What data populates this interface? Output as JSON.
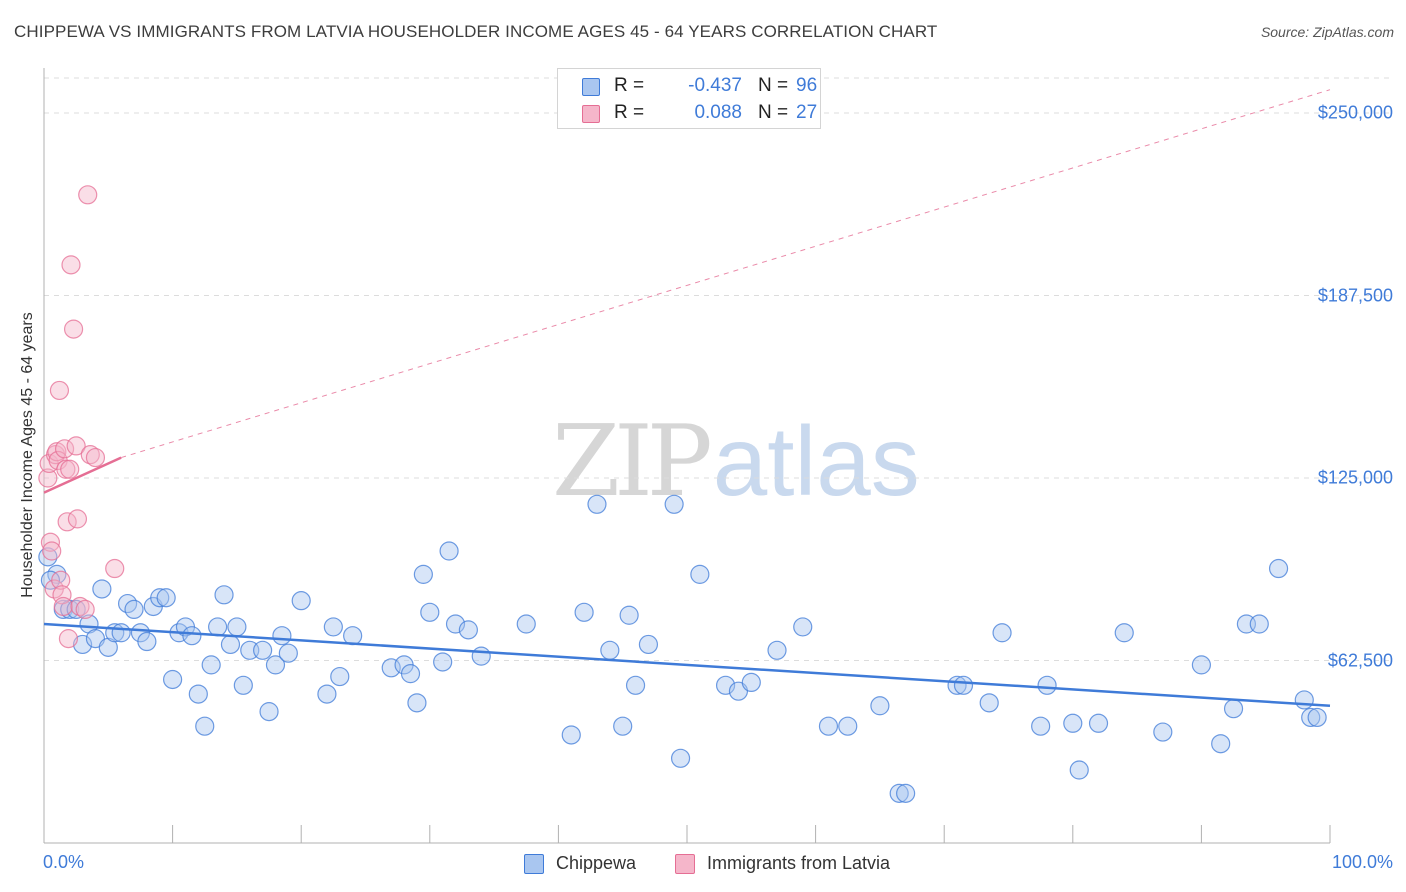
{
  "title": "CHIPPEWA VS IMMIGRANTS FROM LATVIA HOUSEHOLDER INCOME AGES 45 - 64 YEARS CORRELATION CHART",
  "source": "Source: ZipAtlas.com",
  "watermark": {
    "zip": "ZIP",
    "atlas": "atlas"
  },
  "colors": {
    "chippewa": "#3f7bd8",
    "chippewa_fill": "#a9c6f0",
    "latvia": "#e56e94",
    "latvia_fill": "#f5b6ca",
    "grid": "#dcdcdc",
    "axis": "#b0b0b0"
  },
  "legend_top": {
    "rows": [
      {
        "series": "chippewa",
        "r_label": "R =",
        "r_value": "-0.437",
        "n_label": "N =",
        "n_value": "96"
      },
      {
        "series": "latvia",
        "r_label": "R =",
        "r_value": "0.088",
        "n_label": "N =",
        "n_value": "27"
      }
    ]
  },
  "legend_bottom": {
    "items": [
      "Chippewa",
      "Immigrants from Latvia"
    ]
  },
  "chart_data": {
    "type": "scatter",
    "title": "CHIPPEWA VS IMMIGRANTS FROM LATVIA HOUSEHOLDER INCOME AGES 45 - 64 YEARS CORRELATION CHART",
    "xlabel": "",
    "ylabel": "Householder Income Ages 45 - 64 years",
    "xlim": [
      0,
      100
    ],
    "ylim": [
      0,
      262000
    ],
    "x_tick_labels": [
      "0.0%",
      "100.0%"
    ],
    "y_ticks": [
      62500,
      125000,
      187500,
      250000
    ],
    "y_tick_labels": [
      "$62,500",
      "$125,000",
      "$187,500",
      "$250,000"
    ],
    "grid": true,
    "legend": "top-center",
    "series": [
      {
        "name": "Chippewa",
        "r": -0.437,
        "n": 96,
        "trend": {
          "x": [
            0,
            100
          ],
          "y": [
            75000,
            47000
          ],
          "style": "solid"
        },
        "points": [
          [
            1.0,
            92000
          ],
          [
            0.5,
            90000
          ],
          [
            1.5,
            80000
          ],
          [
            2.0,
            80000
          ],
          [
            2.5,
            80000
          ],
          [
            3.0,
            68000
          ],
          [
            3.5,
            75000
          ],
          [
            4.0,
            70000
          ],
          [
            4.5,
            87000
          ],
          [
            5.0,
            67000
          ],
          [
            5.5,
            72000
          ],
          [
            6.0,
            72000
          ],
          [
            6.5,
            82000
          ],
          [
            7.0,
            80000
          ],
          [
            7.5,
            72000
          ],
          [
            8.0,
            69000
          ],
          [
            8.5,
            81000
          ],
          [
            9.0,
            84000
          ],
          [
            9.5,
            84000
          ],
          [
            10.0,
            56000
          ],
          [
            10.5,
            72000
          ],
          [
            11.0,
            74000
          ],
          [
            11.5,
            71000
          ],
          [
            12.0,
            51000
          ],
          [
            12.5,
            40000
          ],
          [
            13.0,
            61000
          ],
          [
            13.5,
            74000
          ],
          [
            14.0,
            85000
          ],
          [
            14.5,
            68000
          ],
          [
            15.0,
            74000
          ],
          [
            15.5,
            54000
          ],
          [
            16.0,
            66000
          ],
          [
            17.0,
            66000
          ],
          [
            17.5,
            45000
          ],
          [
            18.0,
            61000
          ],
          [
            18.5,
            71000
          ],
          [
            19.0,
            65000
          ],
          [
            20.0,
            83000
          ],
          [
            22.0,
            51000
          ],
          [
            22.5,
            74000
          ],
          [
            23.0,
            57000
          ],
          [
            24.0,
            71000
          ],
          [
            27.0,
            60000
          ],
          [
            28.0,
            61000
          ],
          [
            28.5,
            58000
          ],
          [
            29.0,
            48000
          ],
          [
            29.5,
            92000
          ],
          [
            30.0,
            79000
          ],
          [
            31.0,
            62000
          ],
          [
            31.5,
            100000
          ],
          [
            32.0,
            75000
          ],
          [
            33.0,
            73000
          ],
          [
            34.0,
            64000
          ],
          [
            37.5,
            75000
          ],
          [
            41.0,
            37000
          ],
          [
            42.0,
            79000
          ],
          [
            43.0,
            116000
          ],
          [
            44.0,
            66000
          ],
          [
            45.0,
            40000
          ],
          [
            45.5,
            78000
          ],
          [
            46.0,
            54000
          ],
          [
            47.0,
            68000
          ],
          [
            49.0,
            116000
          ],
          [
            49.5,
            29000
          ],
          [
            51.0,
            92000
          ],
          [
            53.0,
            54000
          ],
          [
            54.0,
            52000
          ],
          [
            55.0,
            55000
          ],
          [
            57.0,
            66000
          ],
          [
            59.0,
            74000
          ],
          [
            61.0,
            40000
          ],
          [
            62.5,
            40000
          ],
          [
            65.0,
            47000
          ],
          [
            66.5,
            17000
          ],
          [
            67.0,
            17000
          ],
          [
            71.0,
            54000
          ],
          [
            71.5,
            54000
          ],
          [
            73.5,
            48000
          ],
          [
            74.5,
            72000
          ],
          [
            77.5,
            40000
          ],
          [
            78.0,
            54000
          ],
          [
            80.0,
            41000
          ],
          [
            80.5,
            25000
          ],
          [
            82.0,
            41000
          ],
          [
            84.0,
            72000
          ],
          [
            87.0,
            38000
          ],
          [
            90.0,
            61000
          ],
          [
            91.5,
            34000
          ],
          [
            92.5,
            46000
          ],
          [
            93.5,
            75000
          ],
          [
            94.5,
            75000
          ],
          [
            96.0,
            94000
          ],
          [
            98.0,
            49000
          ],
          [
            98.5,
            43000
          ],
          [
            99.0,
            43000
          ],
          [
            0.3,
            98000
          ]
        ]
      },
      {
        "name": "Immigrants from Latvia",
        "r": 0.088,
        "n": 27,
        "trend": {
          "x": [
            0,
            6
          ],
          "y": [
            120000,
            132000
          ],
          "style": "solid",
          "extended": {
            "x": [
              6,
              100
            ],
            "y": [
              132000,
              258000
            ],
            "style": "dashed"
          }
        },
        "points": [
          [
            0.3,
            125000
          ],
          [
            0.4,
            130000
          ],
          [
            0.5,
            103000
          ],
          [
            0.6,
            100000
          ],
          [
            0.8,
            87000
          ],
          [
            0.9,
            133000
          ],
          [
            1.0,
            134000
          ],
          [
            1.1,
            131000
          ],
          [
            1.2,
            155000
          ],
          [
            1.3,
            90000
          ],
          [
            1.4,
            85000
          ],
          [
            1.5,
            81000
          ],
          [
            1.6,
            135000
          ],
          [
            1.7,
            128000
          ],
          [
            1.8,
            110000
          ],
          [
            1.9,
            70000
          ],
          [
            2.0,
            128000
          ],
          [
            2.1,
            198000
          ],
          [
            2.3,
            176000
          ],
          [
            2.5,
            136000
          ],
          [
            2.6,
            111000
          ],
          [
            2.8,
            81000
          ],
          [
            3.2,
            80000
          ],
          [
            3.4,
            222000
          ],
          [
            3.6,
            133000
          ],
          [
            4.0,
            132000
          ],
          [
            5.5,
            94000
          ]
        ]
      }
    ]
  }
}
